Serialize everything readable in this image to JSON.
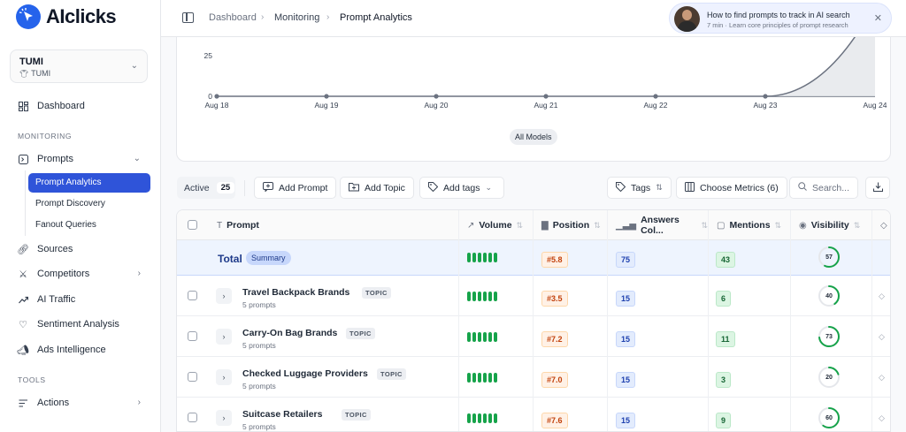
{
  "app": {
    "name": "AIclicks"
  },
  "workspace": {
    "name": "TUMI",
    "sub": "TUMI"
  },
  "sidebar": {
    "dashboard": "Dashboard",
    "section_monitoring": "MONITORING",
    "prompts": "Prompts",
    "prompt_sub": [
      "Prompt Analytics",
      "Prompt Discovery",
      "Fanout Queries"
    ],
    "sources": "Sources",
    "competitors": "Competitors",
    "ai_traffic": "AI Traffic",
    "sentiment": "Sentiment Analysis",
    "ads": "Ads Intelligence",
    "section_tools": "TOOLS",
    "actions": "Actions"
  },
  "breadcrumb": [
    "Dashboard",
    "Monitoring",
    "Prompt Analytics"
  ],
  "promo": {
    "title": "How to find prompts to track in AI search",
    "subtitle": "7 min · Learn core principles of prompt research"
  },
  "chart_data": {
    "type": "area",
    "x": [
      "Aug 18",
      "Aug 19",
      "Aug 20",
      "Aug 21",
      "Aug 22",
      "Aug 23",
      "Aug 24"
    ],
    "series": [
      {
        "name": "All Models",
        "values": [
          0,
          0,
          0,
          0,
          0,
          0,
          57
        ]
      }
    ],
    "ytick_labels": [
      "0",
      "25"
    ],
    "legend": "All Models",
    "legend_position": "bottom",
    "grid": false
  },
  "toolbar": {
    "active_label": "Active",
    "active_count": "25",
    "add_prompt": "Add Prompt",
    "add_topic": "Add Topic",
    "add_tags": "Add tags",
    "tags": "Tags",
    "choose_metrics": "Choose Metrics (6)",
    "search_placeholder": "Search..."
  },
  "table": {
    "headers": {
      "prompt": "Prompt",
      "volume": "Volume",
      "position": "Position",
      "answers": "Answers Col...",
      "mentions": "Mentions",
      "visibility": "Visibility"
    },
    "total": {
      "label": "Total",
      "summary": "Summary",
      "volume_bars": 6,
      "position": "#5.8",
      "answers": "75",
      "mentions": "43",
      "visibility": "57"
    },
    "rows": [
      {
        "name": "Travel Backpack Brands",
        "tag": "TOPIC",
        "count": "5 prompts",
        "volume_bars": 6,
        "position": "#3.5",
        "answers": "15",
        "mentions": "6",
        "visibility": "40"
      },
      {
        "name": "Carry-On Bag Brands",
        "tag": "TOPIC",
        "count": "5 prompts",
        "volume_bars": 6,
        "position": "#7.2",
        "answers": "15",
        "mentions": "11",
        "visibility": "73"
      },
      {
        "name": "Checked Luggage Providers",
        "tag": "TOPIC",
        "count": "5 prompts",
        "volume_bars": 6,
        "position": "#7.0",
        "answers": "15",
        "mentions": "3",
        "visibility": "20"
      },
      {
        "name": "Suitcase Retailers",
        "tag": "TOPIC",
        "count": "5 prompts",
        "volume_bars": 6,
        "position": "#7.6",
        "answers": "15",
        "mentions": "9",
        "visibility": "60"
      }
    ]
  },
  "colors": {
    "accent": "#2f54d9",
    "positive": "#16a34a",
    "position": "#c2410c"
  }
}
